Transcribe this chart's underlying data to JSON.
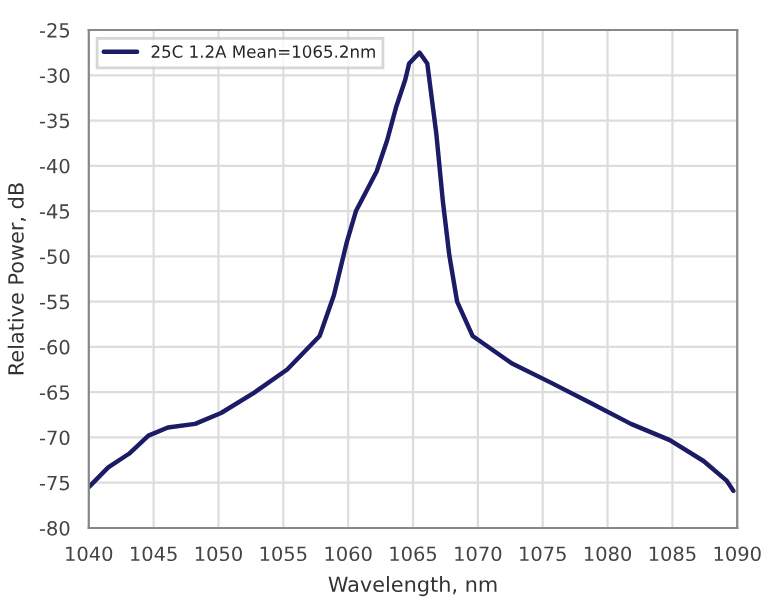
{
  "chart_data": {
    "type": "line",
    "xlabel": "Wavelength, nm",
    "ylabel": "Relative Power, dB",
    "xlim": [
      1040,
      1090
    ],
    "xticks": [
      1040,
      1045,
      1050,
      1055,
      1060,
      1065,
      1070,
      1075,
      1080,
      1085,
      1090
    ],
    "ylim": [
      -80,
      -25
    ],
    "yticks": [
      -80,
      -75,
      -70,
      -65,
      -60,
      -55,
      -50,
      -45,
      -40,
      -35,
      -30,
      -25
    ],
    "grid": true,
    "legend": "top left",
    "line_style": "solid",
    "marker": "none",
    "series": [
      {
        "name": "25C 1.2A Mean=1065.2nm",
        "color": "#1b1b66",
        "x": [
          1040,
          1041.5,
          1043.1,
          1044.6,
          1046.1,
          1048.2,
          1050.2,
          1052.7,
          1055.3,
          1057.8,
          1058.9,
          1059.9,
          1060.6,
          1061.4,
          1062.2,
          1063.0,
          1063.7,
          1064.4,
          1064.7,
          1065.5,
          1066.1,
          1066.8,
          1067.3,
          1067.8,
          1068.4,
          1069.6,
          1072.6,
          1075.7,
          1078.7,
          1081.8,
          1084.8,
          1087.4,
          1089.2,
          1089.7
        ],
        "values": [
          -75.5,
          -73.3,
          -71.8,
          -69.8,
          -68.9,
          -68.5,
          -67.3,
          -65.1,
          -62.5,
          -58.8,
          -54.3,
          -48.4,
          -45.0,
          -42.8,
          -40.6,
          -37.2,
          -33.5,
          -30.5,
          -28.7,
          -27.5,
          -28.7,
          -36.5,
          -43.9,
          -49.9,
          -55.0,
          -58.8,
          -61.8,
          -64.0,
          -66.2,
          -68.5,
          -70.3,
          -72.6,
          -74.8,
          -75.9
        ]
      }
    ]
  }
}
